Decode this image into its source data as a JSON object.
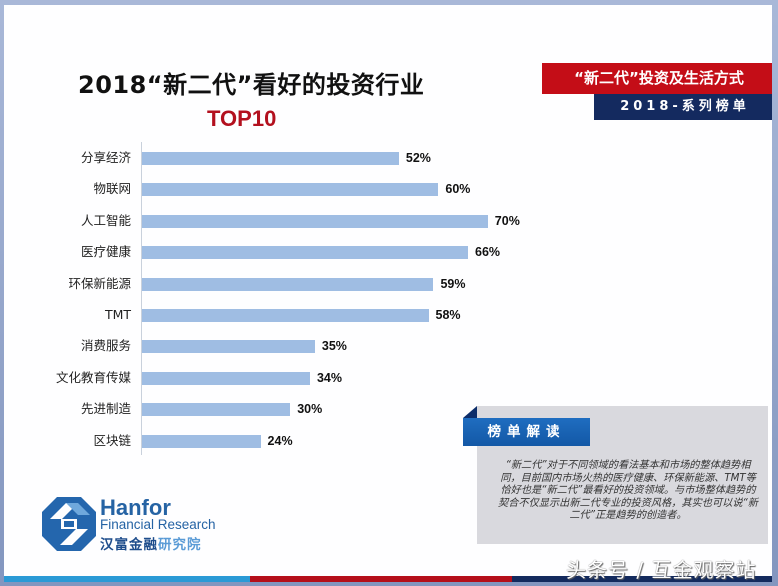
{
  "header": {
    "title": "2018“新二代”看好的投资行业",
    "subtitle": "TOP10",
    "tag_series": "“新二代”投资及生活方式",
    "tag_year": "2018-系列榜单"
  },
  "chart_data": {
    "type": "bar",
    "orientation": "horizontal",
    "title": "2018“新二代”看好的投资行业 TOP10",
    "xlabel": "",
    "ylabel": "",
    "categories": [
      "分享经济",
      "物联网",
      "人工智能",
      "医疗健康",
      "环保新能源",
      "TMT",
      "消费服务",
      "文化教育传媒",
      "先进制造",
      "区块链"
    ],
    "values": [
      52,
      60,
      70,
      66,
      59,
      58,
      35,
      34,
      30,
      24
    ],
    "labels": [
      "52%",
      "60%",
      "70%",
      "66%",
      "59%",
      "58%",
      "35%",
      "34%",
      "30%",
      "24%"
    ],
    "unit": "%",
    "grid": false,
    "bar_color": "#9fbde3"
  },
  "note": {
    "tag": "榜单解读",
    "text": "“新二代”对于不同领域的看法基本和市场的整体趋势相同，目前国内市场火热的医疗健康、环保新能源、TMT等恰好也是“新二代”最看好的投资领域。与市场整体趋势的契合不仅显示出新二代专业的投资风格，其实也可以说“新二代”正是趋势的创造者。"
  },
  "logo": {
    "name": "Hanfor",
    "english": "Financial Research",
    "chinese_dark": "汉富金融",
    "chinese_light": "研究院"
  },
  "watermark": "头条号 / 互金观察站",
  "colors": {
    "accent_red": "#c40d17",
    "navy": "#142a5f",
    "bar": "#9fbde3",
    "title_red": "#b3101e",
    "note_blue": "#1358a6"
  }
}
